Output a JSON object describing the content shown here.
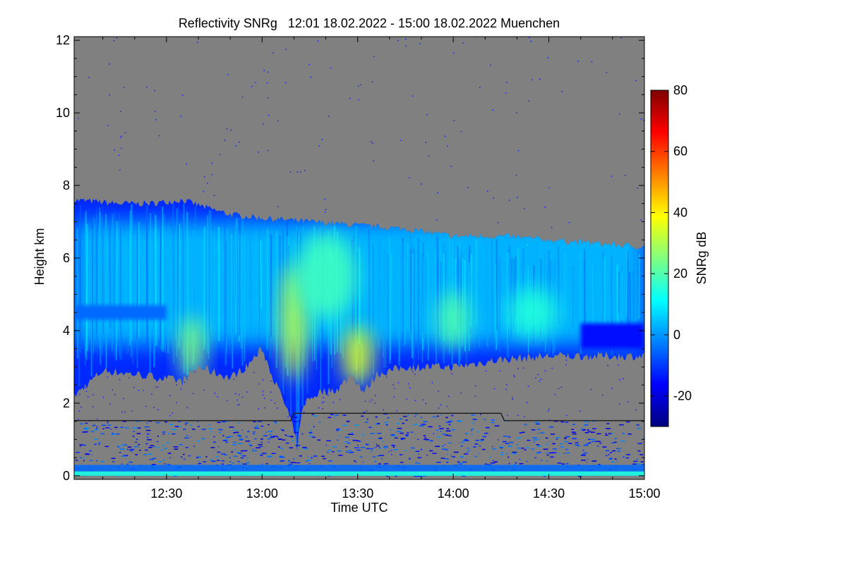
{
  "chart_data": {
    "type": "heatmap",
    "title": "Reflectivity SNRg   12:01 18.02.2022 - 15:00 18.02.2022 Muenchen",
    "xlabel": "Time UTC",
    "ylabel": "Height km",
    "x_unit": "minutes since 12:00 UTC",
    "xlim": [
      1,
      180
    ],
    "ylim": [
      -0.1,
      12.1
    ],
    "x_ticks": [
      {
        "value": 30,
        "label": "12:30"
      },
      {
        "value": 60,
        "label": "13:00"
      },
      {
        "value": 90,
        "label": "13:30"
      },
      {
        "value": 120,
        "label": "14:00"
      },
      {
        "value": 150,
        "label": "14:30"
      },
      {
        "value": 180,
        "label": "15:00"
      }
    ],
    "y_ticks": [
      {
        "value": 0,
        "label": "0"
      },
      {
        "value": 2,
        "label": "2"
      },
      {
        "value": 4,
        "label": "4"
      },
      {
        "value": 6,
        "label": "6"
      },
      {
        "value": 8,
        "label": "8"
      },
      {
        "value": 10,
        "label": "10"
      },
      {
        "value": 12,
        "label": "12"
      }
    ],
    "colorbar": {
      "label": "SNRg dB",
      "range": [
        -30,
        80
      ],
      "ticks": [
        {
          "value": -20,
          "label": "-20"
        },
        {
          "value": 0,
          "label": "0"
        },
        {
          "value": 20,
          "label": "20"
        },
        {
          "value": 40,
          "label": "40"
        },
        {
          "value": 60,
          "label": "60"
        },
        {
          "value": 80,
          "label": "80"
        }
      ],
      "colors": [
        "#00007f",
        "#0000ff",
        "#0080ff",
        "#00ffff",
        "#80ff80",
        "#ffff00",
        "#ff8000",
        "#ff0000",
        "#7f0000"
      ]
    },
    "background_color": "#808080",
    "cloud_top_km": [
      [
        1,
        7.6
      ],
      [
        15,
        7.5
      ],
      [
        25,
        7.5
      ],
      [
        35,
        7.6
      ],
      [
        42,
        7.4
      ],
      [
        50,
        7.2
      ],
      [
        60,
        7.1
      ],
      [
        75,
        7.0
      ],
      [
        90,
        6.9
      ],
      [
        105,
        6.8
      ],
      [
        120,
        6.6
      ],
      [
        135,
        6.6
      ],
      [
        150,
        6.5
      ],
      [
        165,
        6.4
      ],
      [
        180,
        6.3
      ]
    ],
    "cloud_base_km": [
      [
        1,
        2.2
      ],
      [
        10,
        2.9
      ],
      [
        20,
        2.8
      ],
      [
        28,
        2.7
      ],
      [
        35,
        2.6
      ],
      [
        40,
        3.0
      ],
      [
        50,
        2.7
      ],
      [
        55,
        3.0
      ],
      [
        60,
        3.5
      ],
      [
        64,
        2.6
      ],
      [
        68,
        1.8
      ],
      [
        70,
        1.2
      ],
      [
        71,
        0.8
      ],
      [
        73,
        2.0
      ],
      [
        78,
        2.3
      ],
      [
        84,
        2.4
      ],
      [
        88,
        2.8
      ],
      [
        92,
        2.3
      ],
      [
        96,
        2.8
      ],
      [
        105,
        3.0
      ],
      [
        120,
        3.0
      ],
      [
        135,
        3.2
      ],
      [
        150,
        3.3
      ],
      [
        165,
        3.3
      ],
      [
        180,
        3.3
      ]
    ],
    "high_snr_regions": [
      {
        "x": 70,
        "y": 4.2,
        "snr_db": 32,
        "rx": 4,
        "ry": 1.6
      },
      {
        "x": 90,
        "y": 3.3,
        "snr_db": 34,
        "rx": 5,
        "ry": 0.8
      },
      {
        "x": 38,
        "y": 3.5,
        "snr_db": 25,
        "rx": 4,
        "ry": 0.9
      },
      {
        "x": 80,
        "y": 5.5,
        "snr_db": 18,
        "rx": 10,
        "ry": 1.2
      },
      {
        "x": 120,
        "y": 4.3,
        "snr_db": 20,
        "rx": 5,
        "ry": 0.8
      },
      {
        "x": 145,
        "y": 4.5,
        "snr_db": 15,
        "rx": 8,
        "ry": 0.7
      }
    ],
    "low_snr_band": {
      "from_x": 1,
      "to_x": 30,
      "bottom_km": 4.3,
      "top_km": 4.7,
      "snr_db": -5
    },
    "boundary_layer_top_km": [
      [
        1,
        1.52
      ],
      [
        69,
        1.52
      ],
      [
        70,
        1.72
      ],
      [
        135,
        1.72
      ],
      [
        136,
        1.52
      ],
      [
        180,
        1.52
      ]
    ],
    "surface_layer": {
      "top_km": 0.3,
      "snr_db": 15
    }
  }
}
